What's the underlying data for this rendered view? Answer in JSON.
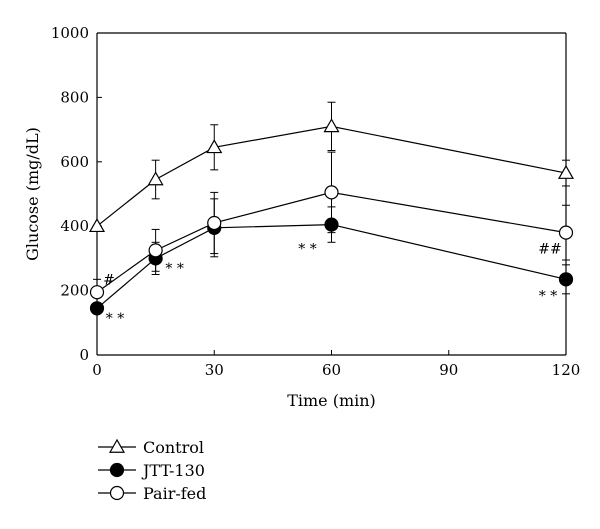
{
  "chart_data": {
    "type": "line",
    "title": "",
    "xlabel": "Time (min)",
    "ylabel": "Glucose (mg/dL)",
    "xlim": [
      0,
      120
    ],
    "ylim": [
      0,
      1000
    ],
    "x_ticks": [
      0,
      30,
      60,
      90,
      120
    ],
    "y_ticks": [
      0,
      200,
      400,
      600,
      800,
      1000
    ],
    "grid": false,
    "legend_position": "bottom-left",
    "x": [
      0,
      15,
      30,
      60,
      120
    ],
    "series": [
      {
        "name": "Control",
        "marker": "triangle-open",
        "values": [
          400,
          545,
          645,
          710,
          565
        ],
        "error": [
          0,
          60,
          70,
          75,
          40
        ]
      },
      {
        "name": "JTT-130",
        "marker": "circle-filled",
        "values": [
          145,
          300,
          395,
          405,
          235
        ],
        "error": [
          0,
          50,
          90,
          55,
          45
        ]
      },
      {
        "name": "Pair-fed",
        "marker": "circle-open",
        "values": [
          195,
          325,
          410,
          505,
          380
        ],
        "error": [
          40,
          65,
          95,
          125,
          85
        ]
      }
    ],
    "annotations": [
      {
        "text": "#",
        "x": 0,
        "y": 235
      },
      {
        "text": "* *",
        "x": 0,
        "y": 115
      },
      {
        "text": "* *",
        "x": 15,
        "y": 270
      },
      {
        "text": "* *",
        "x": 60,
        "y": 330
      },
      {
        "text": "##",
        "x": 120,
        "y": 330
      },
      {
        "text": "* *",
        "x": 120,
        "y": 185
      }
    ]
  }
}
